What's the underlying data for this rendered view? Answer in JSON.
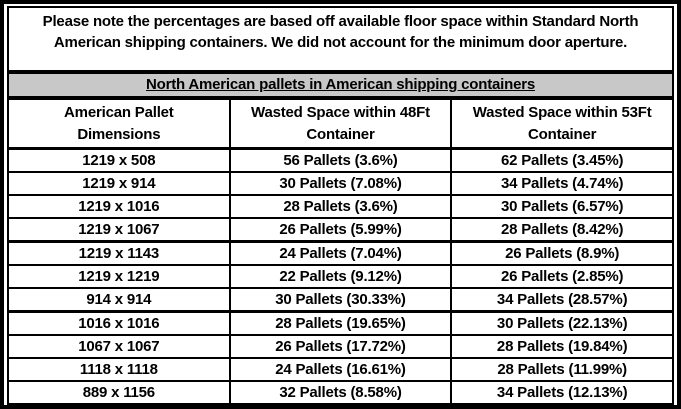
{
  "note": "Please note the percentages are based off available floor space within Standard North American shipping containers. We did not account for the minimum door aperture.",
  "banner": "North American pallets in American shipping containers",
  "table": {
    "headers": [
      {
        "line1": "American Pallet",
        "line2": "Dimensions"
      },
      {
        "line1": "Wasted Space within 48Ft",
        "line2": "Container"
      },
      {
        "line1": "Wasted Space within 53Ft",
        "line2": "Container"
      }
    ],
    "rows": [
      [
        "1219 x 508",
        "56 Pallets (3.6%)",
        "62 Pallets (3.45%)"
      ],
      [
        "1219 x 914",
        "30 Pallets (7.08%)",
        "34 Pallets (4.74%)"
      ],
      [
        "1219 x 1016",
        "28 Pallets (3.6%)",
        "30 Pallets (6.57%)"
      ],
      [
        "1219 x 1067",
        "26 Pallets (5.99%)",
        "28 Pallets (8.42%)"
      ],
      [
        "1219 x 1143",
        "24 Pallets (7.04%)",
        "26 Pallets (8.9%)"
      ],
      [
        "1219 x 1219",
        "22 Pallets (9.12%)",
        "26 Pallets (2.85%)"
      ],
      [
        "914 x 914",
        "30 Pallets (30.33%)",
        "34 Pallets (28.57%)"
      ],
      [
        "1016 x 1016",
        "28 Pallets (19.65%)",
        "30 Pallets (22.13%)"
      ],
      [
        "1067 x 1067",
        "26 Pallets (17.72%)",
        "28 Pallets (19.84%)"
      ],
      [
        "1118 x 1118",
        "24 Pallets (16.61%)",
        "28 Pallets (11.99%)"
      ],
      [
        "889 x 1156",
        "32 Pallets (8.58%)",
        "34 Pallets (12.13%)"
      ]
    ]
  },
  "colors": {
    "border": "#000000",
    "banner_bg": "#c8c8c8",
    "background": "#ffffff",
    "text": "#000000"
  }
}
